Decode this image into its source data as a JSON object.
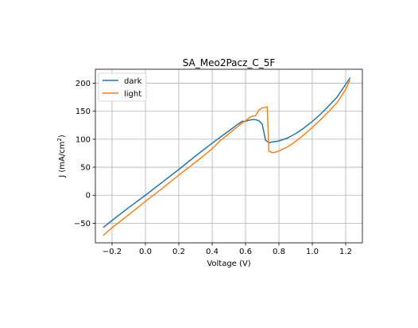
{
  "chart_data": {
    "type": "line",
    "title": "SA_Meo2Pacz_C_5F",
    "xlabel": "Voltage (V)",
    "ylabel": "J (mA/cm²)",
    "ylabel_parts": {
      "base": "J (mA/cm",
      "sup": "2",
      "end": ")"
    },
    "xlim": [
      -0.3,
      1.3
    ],
    "ylim": [
      -85,
      225
    ],
    "xticks": [
      -0.2,
      0.0,
      0.2,
      0.4,
      0.6,
      0.8,
      1.0,
      1.2
    ],
    "xtick_labels": [
      "−0.2",
      "0.0",
      "0.2",
      "0.4",
      "0.6",
      "0.8",
      "1.0",
      "1.2"
    ],
    "yticks": [
      -50,
      0,
      50,
      100,
      150,
      200
    ],
    "ytick_labels": [
      "−50",
      "0",
      "50",
      "100",
      "150",
      "200"
    ],
    "grid": true,
    "legend_position": "upper-left",
    "series": [
      {
        "name": "dark",
        "color": "#1f77b4",
        "x": [
          -0.25,
          -0.2,
          -0.1,
          0.0,
          0.1,
          0.2,
          0.3,
          0.4,
          0.45,
          0.5,
          0.55,
          0.58,
          0.6,
          0.62,
          0.64,
          0.66,
          0.68,
          0.7,
          0.72,
          0.74,
          0.76,
          0.78,
          0.8,
          0.85,
          0.9,
          0.95,
          1.0,
          1.05,
          1.1,
          1.15,
          1.2,
          1.225
        ],
        "y": [
          -57,
          -45,
          -22,
          0,
          23,
          46,
          70,
          93,
          104,
          115,
          126,
          132,
          132,
          134,
          135,
          135,
          133,
          127,
          98,
          94,
          95,
          96,
          97,
          102,
          110,
          120,
          132,
          145,
          160,
          176,
          198,
          209
        ]
      },
      {
        "name": "light",
        "color": "#ff7f0e",
        "x": [
          -0.25,
          -0.2,
          -0.1,
          0.0,
          0.1,
          0.2,
          0.3,
          0.4,
          0.45,
          0.5,
          0.55,
          0.58,
          0.6,
          0.62,
          0.64,
          0.66,
          0.68,
          0.7,
          0.72,
          0.73,
          0.74,
          0.76,
          0.78,
          0.8,
          0.85,
          0.9,
          0.95,
          1.0,
          1.05,
          1.1,
          1.15,
          1.2,
          1.225
        ],
        "y": [
          -71,
          -58,
          -35,
          -11,
          12,
          36,
          59,
          83,
          98,
          110,
          122,
          129,
          133,
          138,
          141,
          142,
          152,
          156,
          157,
          158,
          79,
          76,
          77,
          79,
          86,
          96,
          108,
          121,
          135,
          150,
          166,
          189,
          205
        ]
      }
    ]
  }
}
